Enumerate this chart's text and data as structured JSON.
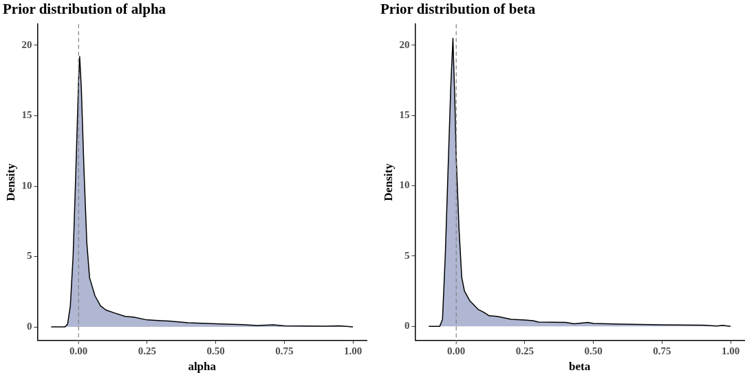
{
  "chart_data": [
    {
      "type": "area",
      "title": "Prior distribution of alpha",
      "xlabel": "alpha",
      "ylabel": "Density",
      "x": [
        -0.1,
        -0.05,
        -0.04,
        -0.03,
        -0.02,
        -0.01,
        0.0,
        0.004,
        0.01,
        0.02,
        0.03,
        0.04,
        0.06,
        0.08,
        0.1,
        0.13,
        0.17,
        0.2,
        0.25,
        0.3,
        0.33,
        0.4,
        0.5,
        0.6,
        0.65,
        0.71,
        0.75,
        0.9,
        0.95,
        1.0
      ],
      "values": [
        0,
        0,
        0.2,
        1.5,
        5,
        11,
        17.5,
        19.2,
        17,
        11,
        6,
        3.5,
        2.2,
        1.5,
        1.2,
        1.0,
        0.75,
        0.7,
        0.5,
        0.45,
        0.42,
        0.3,
        0.22,
        0.17,
        0.1,
        0.15,
        0.08,
        0.05,
        0.08,
        0.0
      ],
      "color": "#b0b7d3",
      "marker": "none",
      "grid": false,
      "legend": false,
      "xlim": [
        -0.15,
        1.05
      ],
      "xticks": [
        {
          "value": 0,
          "label": "0.00"
        },
        {
          "value": 0.25,
          "label": "0.25"
        },
        {
          "value": 0.5,
          "label": "0.50"
        },
        {
          "value": 0.75,
          "label": "0.75"
        },
        {
          "value": 1,
          "label": "1.00"
        }
      ],
      "ylim": [
        -0.95,
        21.5
      ],
      "yticks": [
        0,
        5,
        10,
        15,
        20
      ],
      "ref_lines": [
        {
          "axis": "x",
          "value": 0,
          "color": "#808080",
          "line_style": "dashed"
        }
      ]
    },
    {
      "type": "area",
      "title": "Prior distribution of beta",
      "xlabel": "beta",
      "ylabel": "Density",
      "x": [
        -0.1,
        -0.06,
        -0.05,
        -0.04,
        -0.03,
        -0.02,
        -0.012,
        -0.005,
        0.0,
        0.01,
        0.02,
        0.03,
        0.05,
        0.08,
        0.1,
        0.12,
        0.15,
        0.2,
        0.25,
        0.28,
        0.3,
        0.4,
        0.43,
        0.48,
        0.5,
        0.6,
        0.75,
        0.9,
        0.95,
        0.97,
        1.0
      ],
      "values": [
        0,
        0,
        0.5,
        5,
        11,
        17,
        20.5,
        16,
        12,
        7,
        3.5,
        2.5,
        1.8,
        1.2,
        1.0,
        0.75,
        0.7,
        0.5,
        0.45,
        0.4,
        0.3,
        0.28,
        0.18,
        0.28,
        0.2,
        0.15,
        0.1,
        0.08,
        0.02,
        0.07,
        0.0
      ],
      "color": "#b0b7d3",
      "marker": "none",
      "grid": false,
      "legend": false,
      "xlim": [
        -0.15,
        1.05
      ],
      "xticks": [
        {
          "value": 0,
          "label": "0.00"
        },
        {
          "value": 0.25,
          "label": "0.25"
        },
        {
          "value": 0.5,
          "label": "0.50"
        },
        {
          "value": 0.75,
          "label": "0.75"
        },
        {
          "value": 1,
          "label": "1.00"
        }
      ],
      "ylim": [
        -1.0,
        21.5
      ],
      "yticks": [
        0,
        5,
        10,
        15,
        20
      ],
      "ref_lines": [
        {
          "axis": "x",
          "value": 0,
          "color": "#808080",
          "line_style": "dashed"
        }
      ]
    }
  ]
}
